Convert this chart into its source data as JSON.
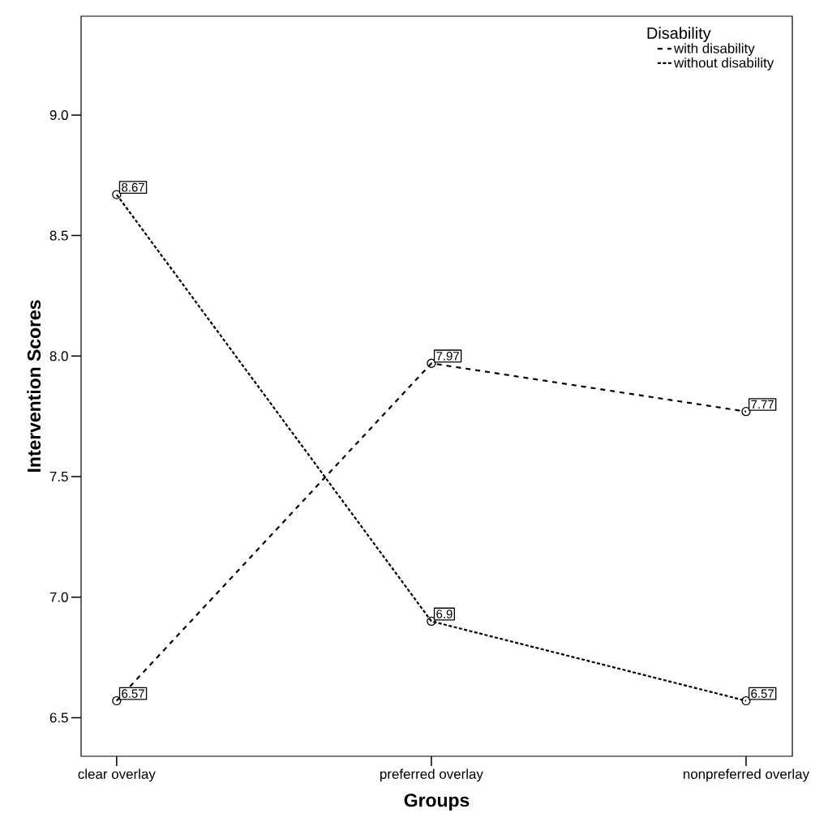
{
  "chart_data": {
    "type": "line",
    "xlabel": "Groups",
    "ylabel": "Intervention Scores",
    "legend_title": "Disability",
    "categories": [
      "clear overlay",
      "preferred overlay",
      "nonpreferred overlay"
    ],
    "series": [
      {
        "name": "with disability",
        "color": "#000000",
        "line_style": "dashed",
        "values": [
          6.57,
          7.97,
          7.77
        ]
      },
      {
        "name": "without disability",
        "color": "#000000",
        "line_style": "dotted",
        "values": [
          8.67,
          6.9,
          6.57
        ]
      }
    ],
    "ylim": [
      6.34,
      9.41
    ],
    "yticks": [
      6.5,
      {
        "value": 7.0,
        "label": "7.0"
      },
      7.5,
      {
        "value": 8.0,
        "label": "8.0"
      },
      8.5,
      {
        "value": 9.0,
        "label": "9.0"
      }
    ],
    "grid": false,
    "legend": "top right",
    "marker": "circle",
    "data_labels": true
  }
}
